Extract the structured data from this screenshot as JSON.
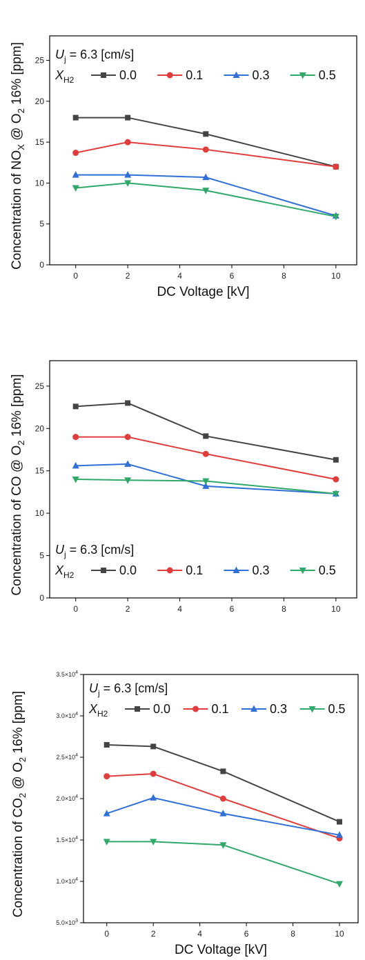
{
  "legend_text": {
    "uj_symbol": "U",
    "uj_sub": "j",
    "uj_value": " = 6.3 [cm/s]",
    "x_symbol": "X",
    "x_sub": "H2"
  },
  "chart_data": [
    {
      "type": "line",
      "xlabel": "DC Voltage [kV]",
      "ylabel": "Concentration of NO_X @ O_2 16% [ppm]",
      "ylabel_parts": {
        "a": "Concentration of NO",
        "a_sub": "X",
        "b": " @ O",
        "b_sub": "2",
        "c": " 16% [ppm]"
      },
      "x": [
        0,
        2,
        5,
        10
      ],
      "xlim": [
        -1,
        10.8
      ],
      "ylim": [
        0,
        28
      ],
      "xticks": [
        0,
        2,
        4,
        6,
        8,
        10
      ],
      "xtick_labels": [
        "0",
        "2",
        "4",
        "6",
        "8",
        "10"
      ],
      "yticks": [
        0,
        5,
        10,
        15,
        20,
        25
      ],
      "ytick_labels": [
        "0",
        "5",
        "10",
        "15",
        "20",
        "25"
      ],
      "legend_position": "top-left",
      "series": [
        {
          "name": "0.0",
          "color": "#444444",
          "marker": "square",
          "values": [
            18.0,
            18.0,
            16.0,
            12.0
          ]
        },
        {
          "name": "0.1",
          "color": "#e03c3c",
          "marker": "circle",
          "values": [
            13.7,
            15.0,
            14.1,
            12.0
          ]
        },
        {
          "name": "0.3",
          "color": "#2f6fd6",
          "marker": "triangle-up",
          "values": [
            11.0,
            11.0,
            10.7,
            6.0
          ]
        },
        {
          "name": "0.5",
          "color": "#2fa869",
          "marker": "triangle-down",
          "values": [
            9.4,
            10.0,
            9.1,
            5.9
          ]
        }
      ]
    },
    {
      "type": "line",
      "xlabel": "DC Voltage [kV]",
      "ylabel": "Concentration of CO @ O_2 16% [ppm]",
      "ylabel_parts": {
        "a": "Concentration of CO @ O",
        "a_sub": "2",
        "b": " 16% [ppm]",
        "b_sub": "",
        "c": ""
      },
      "x": [
        0,
        2,
        5,
        10
      ],
      "xlim": [
        -1,
        10.8
      ],
      "ylim": [
        0,
        28
      ],
      "xticks": [
        0,
        2,
        4,
        6,
        8,
        10
      ],
      "xtick_labels": [
        "0",
        "2",
        "4",
        "6",
        "8",
        "10"
      ],
      "yticks": [
        0,
        5,
        10,
        15,
        20,
        25
      ],
      "ytick_labels": [
        "0",
        "5",
        "10",
        "15",
        "20",
        "25"
      ],
      "legend_position": "bottom-left",
      "series": [
        {
          "name": "0.0",
          "color": "#444444",
          "marker": "square",
          "values": [
            22.6,
            23.0,
            19.1,
            16.3
          ]
        },
        {
          "name": "0.1",
          "color": "#e03c3c",
          "marker": "circle",
          "values": [
            19.0,
            19.0,
            17.0,
            14.0
          ]
        },
        {
          "name": "0.3",
          "color": "#2f6fd6",
          "marker": "triangle-up",
          "values": [
            15.6,
            15.8,
            13.2,
            12.3
          ]
        },
        {
          "name": "0.5",
          "color": "#2fa869",
          "marker": "triangle-down",
          "values": [
            14.0,
            13.9,
            13.8,
            12.3
          ]
        }
      ]
    },
    {
      "type": "line",
      "xlabel": "DC Voltage [kV]",
      "ylabel": "Concentration of CO_2 @ O_2 16% [ppm]",
      "ylabel_parts": {
        "a": "Concentration of CO",
        "a_sub": "2",
        "b": " @ O",
        "b_sub": "2",
        "c": " 16% [ppm]"
      },
      "x": [
        0,
        2,
        5,
        10
      ],
      "xlim": [
        -1,
        10.8
      ],
      "ylim": [
        5000,
        35000
      ],
      "xticks": [
        0,
        2,
        4,
        6,
        8,
        10
      ],
      "xtick_labels": [
        "0",
        "2",
        "4",
        "6",
        "8",
        "10"
      ],
      "yticks": [
        5000,
        10000,
        15000,
        20000,
        25000,
        30000,
        35000
      ],
      "ytick_labels": [
        {
          "m": "5.0",
          "e": "3"
        },
        {
          "m": "1.0",
          "e": "4"
        },
        {
          "m": "1.5",
          "e": "4"
        },
        {
          "m": "2.0",
          "e": "4"
        },
        {
          "m": "2.5",
          "e": "4"
        },
        {
          "m": "3.0",
          "e": "4"
        },
        {
          "m": "3.5",
          "e": "4"
        }
      ],
      "legend_position": "top-left",
      "series": [
        {
          "name": "0.0",
          "color": "#444444",
          "marker": "square",
          "values": [
            26500,
            26300,
            23300,
            17200
          ]
        },
        {
          "name": "0.1",
          "color": "#e03c3c",
          "marker": "circle",
          "values": [
            22700,
            23000,
            20000,
            15200
          ]
        },
        {
          "name": "0.3",
          "color": "#2f6fd6",
          "marker": "triangle-up",
          "values": [
            18200,
            20100,
            18200,
            15600
          ]
        },
        {
          "name": "0.5",
          "color": "#2fa869",
          "marker": "triangle-down",
          "values": [
            14800,
            14800,
            14400,
            9700
          ]
        }
      ]
    }
  ]
}
